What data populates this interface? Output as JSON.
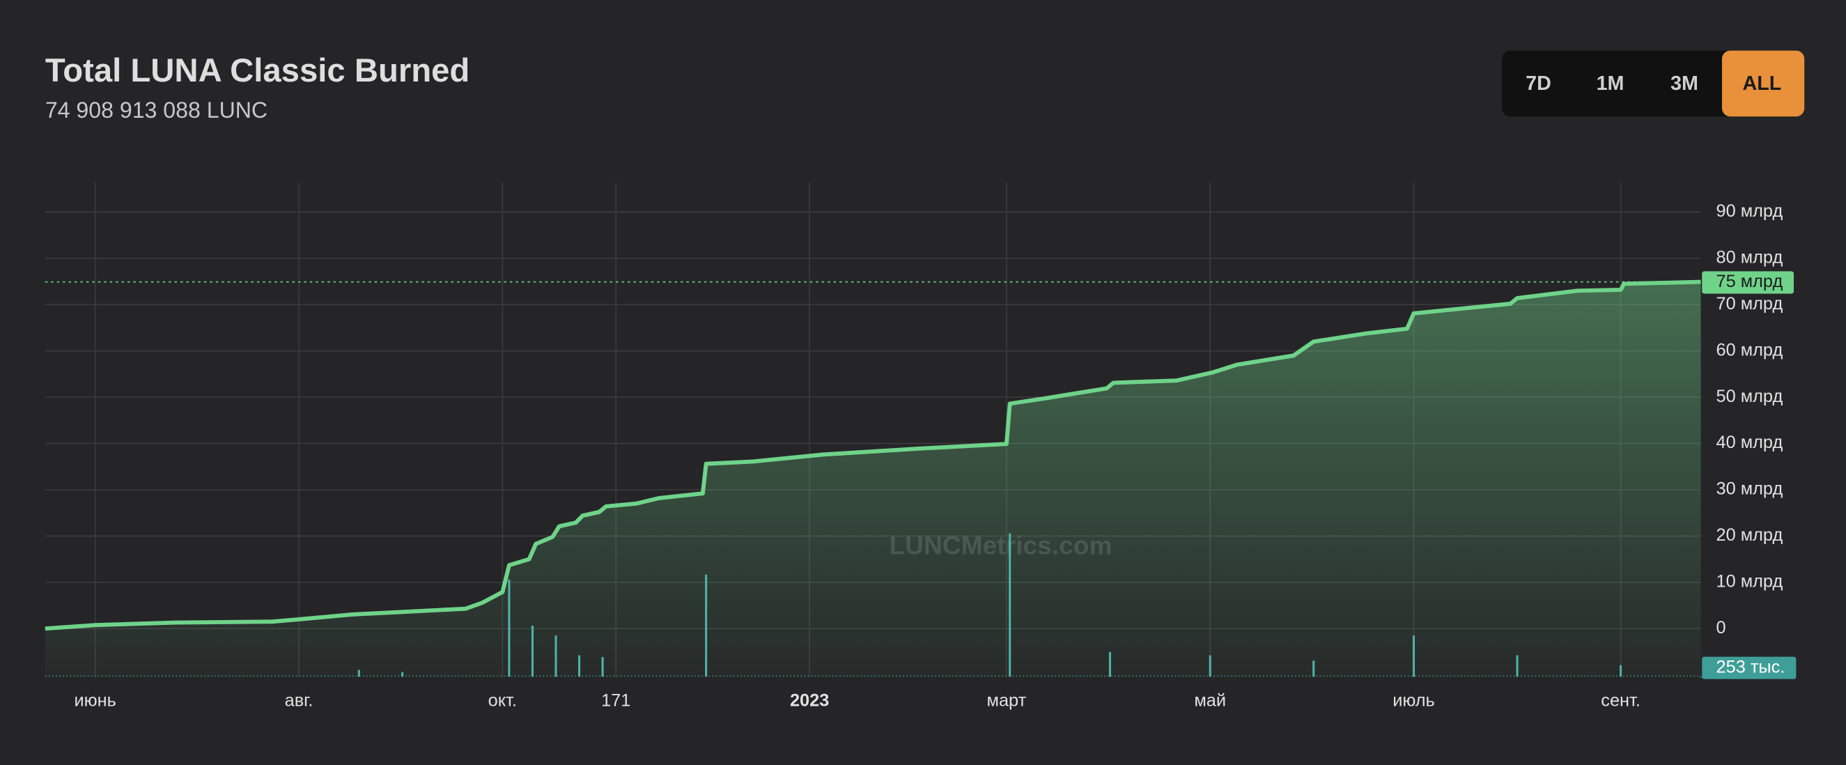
{
  "title": "Total LUNA Classic Burned",
  "subtitle": "74 908 913 088 LUNC",
  "buttons": [
    "7D",
    "1M",
    "3M",
    "ALL"
  ],
  "active_button": "ALL",
  "chart_data": {
    "type": "area",
    "watermark": "LUNCMetrics.com",
    "xlim": [
      0,
      496
    ],
    "xticks": [
      {
        "value": 15,
        "label": "июнь"
      },
      {
        "value": 76,
        "label": "авг."
      },
      {
        "value": 137,
        "label": "окт."
      },
      171,
      {
        "value": 229,
        "label": "2023",
        "bold": true
      },
      {
        "value": 288,
        "label": "март"
      },
      {
        "value": 349,
        "label": "май"
      },
      {
        "value": 410,
        "label": "июль"
      },
      {
        "value": 472,
        "label": "сент."
      }
    ],
    "ylim": [
      -10400000000,
      96400000000
    ],
    "yticks": [
      0,
      {
        "value": 10000000000,
        "label": "10 млрд"
      },
      {
        "value": 20000000000,
        "label": "20 млрд"
      },
      {
        "value": 30000000000,
        "label": "30 млрд"
      },
      {
        "value": 40000000000,
        "label": "40 млрд"
      },
      {
        "value": 50000000000,
        "label": "50 млрд"
      },
      {
        "value": 60000000000,
        "label": "60 млрд"
      },
      {
        "value": 70000000000,
        "label": "70 млрд"
      },
      {
        "value": 80000000000,
        "label": "80 млрд"
      },
      {
        "value": 90000000000,
        "label": "90 млрд"
      }
    ],
    "y2lim": [
      0,
      30000000000
    ],
    "grid": true,
    "series": [
      {
        "type": "area",
        "color": "#6fd38a",
        "x": [
          0,
          15,
          39,
          68,
          76,
          92,
          106,
          126,
          131,
          137,
          139,
          145,
          147,
          152,
          154,
          159,
          161,
          166,
          168,
          177,
          184,
          197,
          198,
          212,
          233,
          262,
          288,
          289,
          300,
          318,
          320,
          339,
          350,
          357,
          374,
          380,
          396,
          408,
          410,
          439,
          441,
          459,
          472,
          473,
          496
        ],
        "values": [
          0,
          760000000,
          1300000000,
          1500000000,
          2000000000,
          3050000000,
          3560000000,
          4300000000,
          5600000000,
          7900000000,
          13700000000,
          15000000000,
          18300000000,
          19800000000,
          22100000000,
          22900000000,
          24400000000,
          25200000000,
          26400000000,
          27000000000,
          28200000000,
          29200000000,
          35600000000,
          36100000000,
          37600000000,
          38900000000,
          39900000000,
          48600000000,
          49800000000,
          51900000000,
          53100000000,
          53600000000,
          55400000000,
          57000000000,
          59000000000,
          62000000000,
          63800000000,
          64800000000,
          68100000000,
          70200000000,
          71400000000,
          73000000000,
          73200000000,
          74500000000,
          74908913088
        ],
        "last_label": "75 млрд"
      },
      {
        "type": "bar",
        "axis": "y2",
        "color": "#4fb3a9",
        "x": [
          94,
          107,
          139,
          146,
          153,
          160,
          167,
          198,
          289,
          319,
          349,
          380,
          410,
          441,
          472,
          496
        ],
        "values": [
          420000000,
          280000000,
          5900000000,
          3100000000,
          2500000000,
          1300000000,
          1200000000,
          6200000000,
          8700000000,
          1500000000,
          1300000000,
          980000000,
          2500000000,
          1300000000,
          700000000,
          253000
        ],
        "last_label": "253 тыс."
      }
    ]
  }
}
